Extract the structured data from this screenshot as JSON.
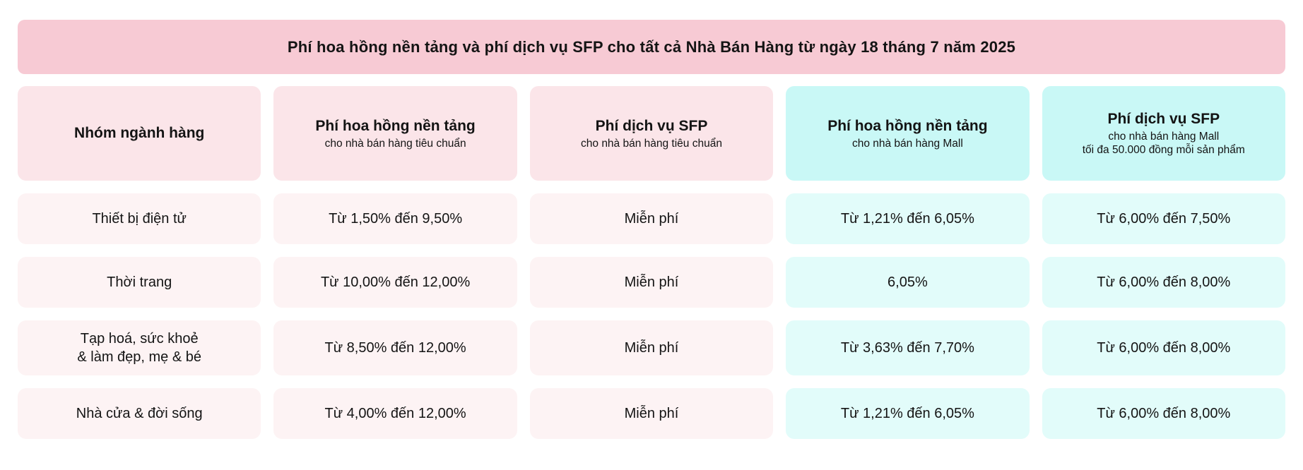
{
  "banner": {
    "title": "Phí hoa hồng nền tảng và phí dịch vụ SFP cho tất cả Nhà Bán Hàng từ ngày 18 tháng 7 năm 2025"
  },
  "table": {
    "columns": [
      {
        "title": "Nhóm ngành hàng",
        "theme": "pink"
      },
      {
        "title": "Phí hoa hồng nền tảng",
        "subtitle": "cho nhà bán hàng tiêu chuẩn",
        "theme": "pink"
      },
      {
        "title": "Phí dịch vụ SFP",
        "subtitle": "cho nhà bán hàng tiêu chuẩn",
        "theme": "pink"
      },
      {
        "title": "Phí hoa hồng nền tảng",
        "subtitle": "cho nhà bán hàng Mall",
        "theme": "cyan"
      },
      {
        "title": "Phí dịch vụ SFP",
        "subtitle": "cho nhà bán hàng Mall",
        "subtitle2": "tối đa 50.000 đồng mỗi sản phẩm",
        "theme": "cyan"
      }
    ],
    "rows": [
      {
        "category": "Thiết bị điện tử",
        "standard_commission": "Từ 1,50% đến 9,50%",
        "standard_sfp": "Miễn phí",
        "mall_commission": "Từ 1,21% đến 6,05%",
        "mall_sfp": "Từ 6,00% đến 7,50%"
      },
      {
        "category": "Thời trang",
        "standard_commission": "Từ 10,00% đến 12,00%",
        "standard_sfp": "Miễn phí",
        "mall_commission": "6,05%",
        "mall_sfp": "Từ 6,00% đến 8,00%"
      },
      {
        "category": "Tạp hoá, sức khoẻ\n& làm đẹp, mẹ & bé",
        "standard_commission": "Từ 8,50% đến 12,00%",
        "standard_sfp": "Miễn phí",
        "mall_commission": "Từ 3,63% đến 7,70%",
        "mall_sfp": "Từ 6,00% đến 8,00%"
      },
      {
        "category": "Nhà cửa & đời sống",
        "standard_commission": "Từ 4,00% đến 12,00%",
        "standard_sfp": "Miễn phí",
        "mall_commission": "Từ 1,21% đến 6,05%",
        "mall_sfp": "Từ 6,00% đến 8,00%"
      }
    ]
  },
  "colors": {
    "banner_bg": "#f7cad4",
    "header_pink_bg": "#fbe5e9",
    "header_cyan_bg": "#c9f8f6",
    "row_pink_bg": "#fdf3f4",
    "row_cyan_bg": "#e2fcfa",
    "text": "#141414"
  }
}
